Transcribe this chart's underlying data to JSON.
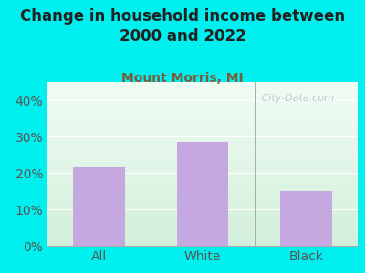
{
  "title": "Change in household income between\n2000 and 2022",
  "subtitle": "Mount Morris, MI",
  "categories": [
    "All",
    "White",
    "Black"
  ],
  "values": [
    21.5,
    28.5,
    15.0
  ],
  "bar_color": "#c4a8df",
  "ylim": [
    0,
    45
  ],
  "yticks": [
    0,
    10,
    20,
    30,
    40
  ],
  "ytick_labels": [
    "0%",
    "10%",
    "20%",
    "30%",
    "40%"
  ],
  "background_outer": "#00f0f0",
  "title_fontsize": 12,
  "title_color": "#222222",
  "subtitle_fontsize": 10,
  "subtitle_color": "#7a5c3a",
  "tick_color": "#555555",
  "tick_fontsize": 10,
  "watermark": " City-Data.com",
  "watermark_color": "#b0bec5",
  "grid_color": "#cccccc",
  "divider_color": "#aaaaaa",
  "bg_top_left": "#e8f5e8",
  "bg_top_right": "#f0faf8",
  "bg_bottom": "#d8ecd8"
}
